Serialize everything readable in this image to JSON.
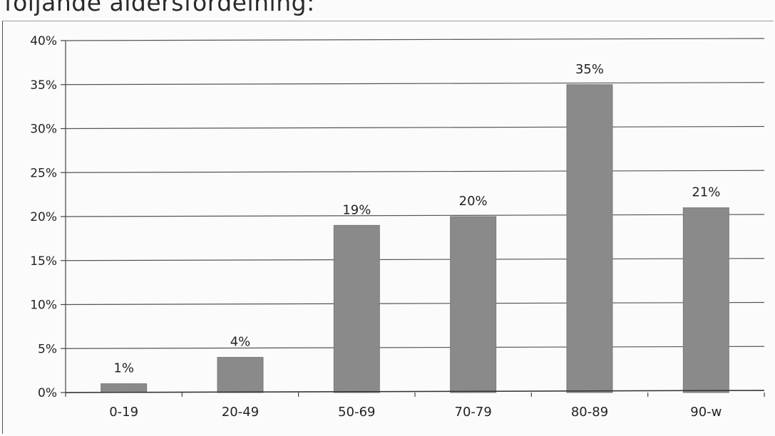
{
  "caption": "följande åldersfördelning:",
  "chart_data": {
    "type": "bar",
    "title": "",
    "xlabel": "",
    "ylabel": "",
    "categories": [
      "0-19",
      "20-49",
      "50-69",
      "70-79",
      "80-89",
      "90-w"
    ],
    "values": [
      1,
      4,
      19,
      20,
      35,
      21
    ],
    "data_labels": [
      "1%",
      "4%",
      "19%",
      "20%",
      "35%",
      "21%"
    ],
    "yticks": [
      0,
      5,
      10,
      15,
      20,
      25,
      30,
      35,
      40
    ],
    "ytick_labels": [
      "0%",
      "5%",
      "10%",
      "15%",
      "20%",
      "25%",
      "30%",
      "35%",
      "40%"
    ],
    "ylim": [
      0,
      40
    ],
    "grid": true,
    "legend": "none",
    "bar_color": "#8a8a8a"
  }
}
